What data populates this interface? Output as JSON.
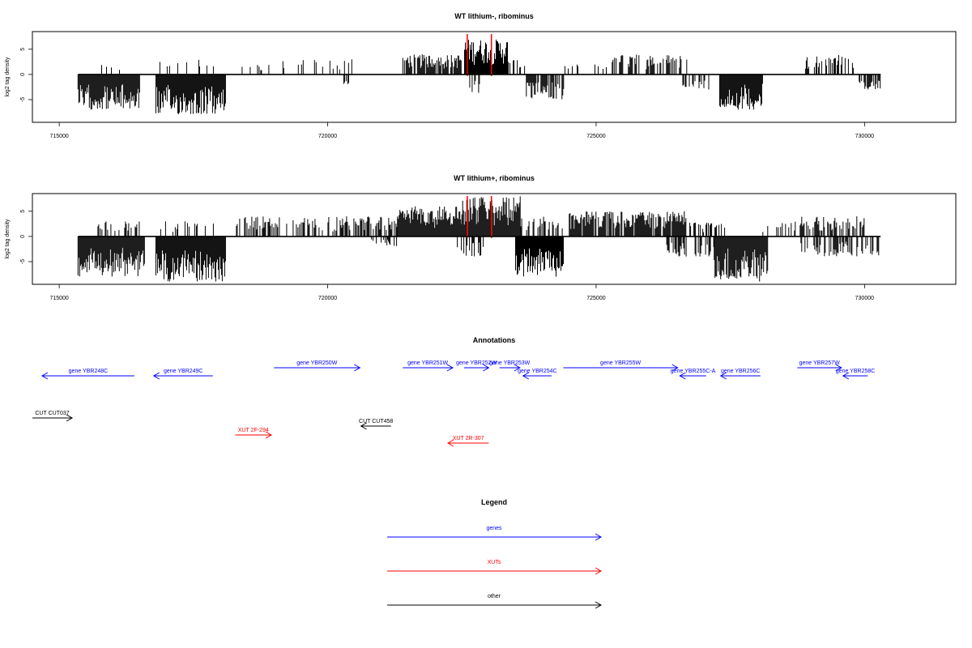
{
  "colors": {
    "gene": "#0000ff",
    "xut": "#ff0000",
    "other": "#000000",
    "signal": "#000000",
    "highlight": "#ff0000",
    "baseline": "#000000",
    "axis": "#000000"
  },
  "chart_data": [
    {
      "type": "bar",
      "title": "WT lithium-, ribominus",
      "xlabel": "",
      "ylabel": "log2 tag density",
      "xlim": [
        714500,
        731700
      ],
      "ylim": [
        -9.5,
        8.5
      ],
      "xticks": [
        715000,
        720000,
        725000,
        730000
      ],
      "xtick_labels": [
        "715000",
        "720000",
        "725000",
        "730000"
      ],
      "yticks": [
        -5,
        0,
        5
      ],
      "ytick_labels": [
        "-5",
        "0",
        "5"
      ],
      "grid": false,
      "baseline_range": [
        715350,
        730300
      ],
      "highlight_positions": [
        722600,
        723050
      ],
      "positive_regions": [
        {
          "start": 715700,
          "end": 716300,
          "amp": 2,
          "density": 0.2
        },
        {
          "start": 716800,
          "end": 717900,
          "amp": 3,
          "density": 0.1
        },
        {
          "start": 718300,
          "end": 719000,
          "amp": 2,
          "density": 0.2
        },
        {
          "start": 719000,
          "end": 720500,
          "amp": 3,
          "density": 0.2
        },
        {
          "start": 721400,
          "end": 722500,
          "amp": 4,
          "density": 0.8
        },
        {
          "start": 722550,
          "end": 723350,
          "amp": 7,
          "density": 1.0
        },
        {
          "start": 723350,
          "end": 723700,
          "amp": 3,
          "density": 0.3
        },
        {
          "start": 724300,
          "end": 725200,
          "amp": 2,
          "density": 0.2
        },
        {
          "start": 725300,
          "end": 726700,
          "amp": 4,
          "density": 0.5
        },
        {
          "start": 728900,
          "end": 729800,
          "amp": 4,
          "density": 0.4
        }
      ],
      "negative_regions": [
        {
          "start": 715350,
          "end": 716500,
          "amp": 7,
          "density": 1.0
        },
        {
          "start": 716800,
          "end": 718100,
          "amp": 8,
          "density": 1.0
        },
        {
          "start": 720300,
          "end": 720400,
          "amp": 2,
          "density": 0.3
        },
        {
          "start": 722600,
          "end": 722900,
          "amp": 4,
          "density": 0.5
        },
        {
          "start": 723700,
          "end": 724400,
          "amp": 5,
          "density": 0.8
        },
        {
          "start": 726600,
          "end": 727100,
          "amp": 3,
          "density": 0.3
        },
        {
          "start": 727300,
          "end": 728100,
          "amp": 7,
          "density": 1.0
        },
        {
          "start": 729900,
          "end": 730300,
          "amp": 3,
          "density": 0.5
        }
      ]
    },
    {
      "type": "bar",
      "title": "WT lithium+, ribominus",
      "xlabel": "",
      "ylabel": "log2 tag density",
      "xlim": [
        714500,
        731700
      ],
      "ylim": [
        -9.5,
        8.5
      ],
      "xticks": [
        715000,
        720000,
        725000,
        730000
      ],
      "xtick_labels": [
        "715000",
        "720000",
        "725000",
        "730000"
      ],
      "yticks": [
        -5,
        0,
        5
      ],
      "ytick_labels": [
        "-5",
        "0",
        "5"
      ],
      "grid": false,
      "baseline_range": [
        715350,
        730300
      ],
      "highlight_positions": [
        722600,
        723050
      ],
      "positive_regions": [
        {
          "start": 715600,
          "end": 716500,
          "amp": 3,
          "density": 0.3
        },
        {
          "start": 716800,
          "end": 717900,
          "amp": 3,
          "density": 0.3
        },
        {
          "start": 718300,
          "end": 721300,
          "amp": 4,
          "density": 0.5
        },
        {
          "start": 721300,
          "end": 722500,
          "amp": 6,
          "density": 1.0
        },
        {
          "start": 722500,
          "end": 723600,
          "amp": 8,
          "density": 1.0
        },
        {
          "start": 723600,
          "end": 724400,
          "amp": 4,
          "density": 0.4
        },
        {
          "start": 724500,
          "end": 726700,
          "amp": 5,
          "density": 0.9
        },
        {
          "start": 726700,
          "end": 727400,
          "amp": 3,
          "density": 0.4
        },
        {
          "start": 728000,
          "end": 728800,
          "amp": 3,
          "density": 0.2
        },
        {
          "start": 728800,
          "end": 730000,
          "amp": 4,
          "density": 0.5
        }
      ],
      "negative_regions": [
        {
          "start": 715350,
          "end": 716600,
          "amp": 8,
          "density": 1.0
        },
        {
          "start": 716800,
          "end": 718100,
          "amp": 9,
          "density": 1.0
        },
        {
          "start": 720800,
          "end": 721300,
          "amp": 2,
          "density": 0.3
        },
        {
          "start": 722400,
          "end": 722900,
          "amp": 4,
          "density": 0.4
        },
        {
          "start": 723500,
          "end": 724400,
          "amp": 8,
          "density": 1.0
        },
        {
          "start": 726300,
          "end": 727200,
          "amp": 4,
          "density": 0.5
        },
        {
          "start": 727200,
          "end": 728200,
          "amp": 9,
          "density": 1.0
        },
        {
          "start": 728800,
          "end": 730300,
          "amp": 4,
          "density": 0.5
        }
      ]
    }
  ],
  "annotations": {
    "title": "Annotations",
    "features": [
      {
        "label": "gene YBR248C",
        "type": "gene",
        "strand": "-",
        "start": 714680,
        "end": 716400,
        "row": 2
      },
      {
        "label": "gene YBR249C",
        "type": "gene",
        "strand": "-",
        "start": 716760,
        "end": 717860,
        "row": 2
      },
      {
        "label": "gene YBR250W",
        "type": "gene",
        "strand": "+",
        "start": 719000,
        "end": 720600,
        "row": 1
      },
      {
        "label": "gene YBR251W",
        "type": "gene",
        "strand": "+",
        "start": 721400,
        "end": 722330,
        "row": 1
      },
      {
        "label": "gene YBR252W",
        "type": "gene",
        "strand": "+",
        "start": 722540,
        "end": 723000,
        "row": 1
      },
      {
        "label": "gene YBR253W",
        "type": "gene",
        "strand": "+",
        "start": 723200,
        "end": 723580,
        "row": 1
      },
      {
        "label": "gene YBR254C",
        "type": "gene",
        "strand": "-",
        "start": 723640,
        "end": 724170,
        "row": 2
      },
      {
        "label": "gene YBR255W",
        "type": "gene",
        "strand": "+",
        "start": 724390,
        "end": 726520,
        "row": 1
      },
      {
        "label": "gene YBR255C-A",
        "type": "gene",
        "strand": "-",
        "start": 726560,
        "end": 727050,
        "row": 2
      },
      {
        "label": "gene YBR256C",
        "type": "gene",
        "strand": "-",
        "start": 727320,
        "end": 728060,
        "row": 2
      },
      {
        "label": "gene YBR257W",
        "type": "gene",
        "strand": "+",
        "start": 728750,
        "end": 729570,
        "row": 1
      },
      {
        "label": "gene YBR258C",
        "type": "gene",
        "strand": "-",
        "start": 729600,
        "end": 730060,
        "row": 2
      },
      {
        "label": "CUT CUT037",
        "type": "other",
        "strand": "+",
        "start": 714500,
        "end": 715240,
        "row": 3
      },
      {
        "label": "CUT CUT458",
        "type": "other",
        "strand": "-",
        "start": 720620,
        "end": 721180,
        "row": 4
      },
      {
        "label": "XUT 2F-294",
        "type": "xut",
        "strand": "+",
        "start": 718280,
        "end": 718950,
        "row": 5
      },
      {
        "label": "XUT 2R-307",
        "type": "xut",
        "strand": "-",
        "start": 722240,
        "end": 723000,
        "row": 6
      }
    ]
  },
  "legend": {
    "title": "Legend",
    "items": [
      {
        "label": "genes",
        "type": "gene"
      },
      {
        "label": "XUTs",
        "type": "xut"
      },
      {
        "label": "other",
        "type": "other"
      }
    ]
  }
}
